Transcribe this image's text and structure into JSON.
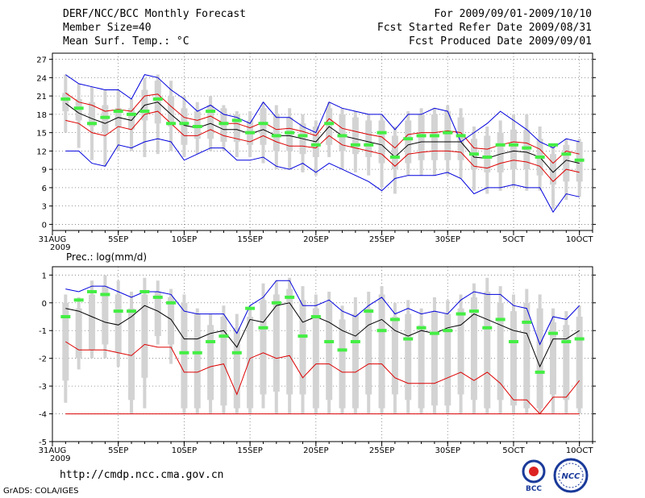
{
  "header": {
    "title": "DERF/NCC/BCC Monthly Forecast",
    "member_size": "Member Size=40",
    "variable": "Mean Surf. Temp.: °C",
    "period": "For 2009/09/01-2009/10/10",
    "started": "Fcst Started Refer Date 2009/08/31",
    "produced": "Fcst Produced Date 2009/09/01"
  },
  "footer": {
    "url": "http://cmdp.ncc.cma.gov.cn",
    "grads": "GrADS: COLA/IGES",
    "logo_left_text": "BCC",
    "logo_right_text": "NCC"
  },
  "colors": {
    "mean": "#000000",
    "spread": "#dd0000",
    "extreme": "#0000dd",
    "box": "#d3d3d3",
    "observed": "#44ee44"
  },
  "chart_data": [
    {
      "type": "box-ensemble",
      "title": "Mean Surf. Temp.: °C",
      "ylim": [
        -1,
        28
      ],
      "yticks": [
        0,
        3,
        6,
        9,
        12,
        15,
        18,
        21,
        24,
        27
      ],
      "xtick_days": [
        0,
        5,
        10,
        15,
        20,
        25,
        30,
        35,
        40
      ],
      "xtick_labels": [
        "31AUG",
        "5SEP",
        "10SEP",
        "15SEP",
        "20SEP",
        "25SEP",
        "30SEP",
        "5OCT",
        "10OCT"
      ],
      "xtick_sublabel": "2009",
      "days": [
        1,
        2,
        3,
        4,
        5,
        6,
        7,
        8,
        9,
        10,
        11,
        12,
        13,
        14,
        15,
        16,
        17,
        18,
        19,
        20,
        21,
        22,
        23,
        24,
        25,
        26,
        27,
        28,
        29,
        30,
        31,
        32,
        33,
        34,
        35,
        36,
        37,
        38,
        39,
        40
      ],
      "box_low": [
        18.5,
        17.0,
        16.0,
        15.0,
        16.0,
        15.5,
        17.0,
        16.5,
        16.0,
        13.0,
        14.0,
        14.0,
        13.5,
        13.5,
        13.0,
        13.0,
        12.0,
        12.0,
        11.5,
        11.0,
        13.0,
        12.0,
        11.5,
        11.0,
        10.0,
        9.0,
        10.0,
        10.5,
        10.5,
        10.5,
        10.5,
        9.0,
        8.5,
        8.5,
        9.0,
        9.0,
        8.0,
        6.5,
        7.0,
        7.0
      ],
      "box_high": [
        21.5,
        20.5,
        20.0,
        19.5,
        19.0,
        19.0,
        22.0,
        23.5,
        21.0,
        19.0,
        18.5,
        19.5,
        19.0,
        18.0,
        17.0,
        19.0,
        18.0,
        17.5,
        16.5,
        16.0,
        19.0,
        18.0,
        17.5,
        17.0,
        17.0,
        14.5,
        17.0,
        18.0,
        18.0,
        18.5,
        17.5,
        14.0,
        14.5,
        15.0,
        15.5,
        15.5,
        14.0,
        11.5,
        13.0,
        13.5
      ],
      "box_min": [
        15.0,
        12.5,
        10.5,
        9.5,
        12.0,
        12.0,
        11.0,
        11.5,
        12.0,
        11.0,
        11.5,
        12.0,
        12.0,
        11.0,
        11.0,
        10.0,
        9.0,
        9.0,
        8.5,
        8.0,
        11.0,
        9.0,
        8.5,
        8.0,
        6.0,
        5.0,
        8.0,
        8.0,
        8.0,
        8.0,
        7.5,
        5.5,
        5.0,
        5.5,
        6.0,
        5.5,
        5.5,
        2.5,
        4.0,
        4.5
      ],
      "box_max": [
        24.5,
        23.0,
        22.5,
        22.0,
        22.0,
        20.5,
        24.0,
        24.5,
        23.5,
        21.0,
        20.0,
        21.0,
        19.5,
        18.5,
        18.5,
        20.0,
        19.5,
        19.0,
        18.0,
        17.0,
        20.0,
        19.0,
        18.5,
        18.0,
        18.0,
        16.0,
        18.5,
        19.0,
        19.0,
        19.5,
        19.0,
        16.0,
        16.0,
        17.0,
        18.0,
        18.0,
        16.0,
        13.0,
        14.0,
        14.0
      ],
      "series": [
        {
          "name": "Mean",
          "color": "#000000",
          "values": [
            19.8,
            18.2,
            17.3,
            16.5,
            17.5,
            17.0,
            19.5,
            20.0,
            18.0,
            16.2,
            15.8,
            16.5,
            15.5,
            15.5,
            14.8,
            15.5,
            14.5,
            14.5,
            14.0,
            13.5,
            16.0,
            14.5,
            14.0,
            13.5,
            13.0,
            11.0,
            13.0,
            13.5,
            13.5,
            13.5,
            13.5,
            11.0,
            10.8,
            11.5,
            12.0,
            11.8,
            11.0,
            8.5,
            10.5,
            10.0
          ]
        },
        {
          "name": "Spread upper",
          "color": "#dd0000",
          "values": [
            21.5,
            20.0,
            19.5,
            18.5,
            18.8,
            18.5,
            21.0,
            21.3,
            19.3,
            17.5,
            17.0,
            17.7,
            16.5,
            16.5,
            15.8,
            16.7,
            15.5,
            15.7,
            15.2,
            14.5,
            17.3,
            15.7,
            15.2,
            14.7,
            14.3,
            12.5,
            14.7,
            15.0,
            15.0,
            15.3,
            15.0,
            12.5,
            12.3,
            13.0,
            13.5,
            13.3,
            12.3,
            10.0,
            12.0,
            11.5
          ]
        },
        {
          "name": "Spread lower",
          "color": "#dd0000",
          "values": [
            17.0,
            16.5,
            15.0,
            14.5,
            16.0,
            15.5,
            18.0,
            18.5,
            16.5,
            14.5,
            14.5,
            15.5,
            14.5,
            14.0,
            13.5,
            14.5,
            13.5,
            12.8,
            12.8,
            12.5,
            14.5,
            13.0,
            12.5,
            12.0,
            11.5,
            9.5,
            11.5,
            11.8,
            12.0,
            12.0,
            11.8,
            9.5,
            9.2,
            10.0,
            10.5,
            10.2,
            9.5,
            7.0,
            9.0,
            8.5
          ]
        },
        {
          "name": "Upper extreme",
          "color": "#0000dd",
          "values": [
            24.5,
            23.0,
            22.5,
            22.0,
            22.0,
            20.5,
            24.5,
            24.0,
            22.0,
            20.5,
            18.5,
            19.5,
            18.0,
            17.5,
            16.5,
            20.0,
            17.5,
            17.5,
            16.0,
            15.0,
            20.0,
            19.0,
            18.5,
            18.0,
            18.0,
            15.5,
            18.0,
            18.0,
            19.0,
            18.5,
            13.5,
            15.0,
            16.5,
            18.5,
            17.0,
            15.5,
            13.5,
            12.5,
            14.0,
            13.5
          ]
        },
        {
          "name": "Lower extreme",
          "color": "#0000dd",
          "values": [
            12.0,
            12.0,
            10.0,
            9.5,
            13.0,
            12.5,
            13.5,
            14.0,
            13.5,
            10.5,
            11.5,
            12.5,
            12.5,
            10.5,
            10.5,
            11.0,
            9.5,
            9.0,
            10.0,
            8.5,
            10.0,
            9.0,
            8.0,
            7.0,
            5.5,
            7.5,
            8.0,
            8.0,
            8.0,
            8.5,
            7.5,
            5.0,
            6.0,
            6.0,
            6.5,
            6.0,
            6.0,
            2.0,
            5.0,
            4.5
          ]
        }
      ],
      "observed": [
        20.5,
        19.0,
        16.5,
        17.5,
        18.5,
        18.0,
        18.5,
        20.5,
        16.5,
        16.5,
        16.0,
        18.5,
        16.5,
        17.0,
        15.0,
        16.5,
        14.5,
        15.0,
        14.5,
        13.0,
        16.5,
        14.5,
        13.0,
        13.0,
        15.0,
        11.0,
        14.0,
        14.5,
        14.5,
        15.0,
        14.5,
        11.5,
        11.0,
        13.0,
        13.0,
        12.5,
        11.0,
        13.0,
        11.5,
        10.5
      ]
    },
    {
      "type": "box-ensemble",
      "title": "Prec.: log(mm/d)",
      "ylim": [
        -5,
        1.3
      ],
      "yticks": [
        -5,
        -4,
        -3,
        -2,
        -1,
        0,
        1
      ],
      "xtick_days": [
        0,
        5,
        10,
        15,
        20,
        25,
        30,
        35,
        40
      ],
      "xtick_labels": [
        "31AUG",
        "5SEP",
        "10SEP",
        "15SEP",
        "20SEP",
        "25SEP",
        "30SEP",
        "5OCT",
        "10OCT"
      ],
      "xtick_sublabel": "2009",
      "days": [
        1,
        2,
        3,
        4,
        5,
        6,
        7,
        8,
        9,
        10,
        11,
        12,
        13,
        14,
        15,
        16,
        17,
        18,
        19,
        20,
        21,
        22,
        23,
        24,
        25,
        26,
        27,
        28,
        29,
        30,
        31,
        32,
        33,
        34,
        35,
        36,
        37,
        38,
        39,
        40
      ],
      "box_low": [
        -2.8,
        -2.0,
        -1.7,
        -1.5,
        -1.8,
        -3.5,
        -2.7,
        -1.2,
        -1.5,
        -3.8,
        -3.8,
        -3.5,
        -3.7,
        -3.8,
        -3.8,
        -3.3,
        -3.2,
        -3.3,
        -3.3,
        -3.8,
        -3.5,
        -3.8,
        -3.8,
        -3.3,
        -3.8,
        -3.3,
        -3.5,
        -3.8,
        -3.7,
        -3.7,
        -3.3,
        -3.5,
        -3.8,
        -3.5,
        -3.7,
        -3.8,
        -3.8,
        -3.3,
        -3.5,
        -3.8
      ],
      "box_high": [
        0.0,
        -0.2,
        0.3,
        0.6,
        0.3,
        -0.2,
        0.3,
        0.4,
        0.2,
        0.0,
        -0.4,
        -0.8,
        -0.5,
        -0.9,
        -0.5,
        0.1,
        0.3,
        0.5,
        0.1,
        -0.2,
        0.0,
        -0.6,
        -0.4,
        -0.2,
        0.3,
        -0.5,
        -0.4,
        -0.8,
        -0.3,
        -0.4,
        -0.2,
        0.2,
        0.4,
        0.0,
        -0.3,
        0.0,
        -0.2,
        -0.7,
        -0.8,
        -0.5
      ],
      "box_min": [
        -3.6,
        -2.4,
        -2.0,
        -2.0,
        -2.3,
        -4.0,
        -3.8,
        -1.5,
        -2.2,
        -4.0,
        -4.0,
        -4.0,
        -4.0,
        -4.0,
        -4.0,
        -3.8,
        -4.0,
        -4.0,
        -4.0,
        -4.0,
        -4.0,
        -4.0,
        -4.0,
        -4.0,
        -4.0,
        -4.0,
        -4.0,
        -4.0,
        -4.0,
        -4.0,
        -4.0,
        -4.0,
        -4.0,
        -4.0,
        -4.0,
        -4.0,
        -4.0,
        -4.0,
        -4.0,
        -4.0
      ],
      "box_max": [
        0.3,
        0.2,
        0.8,
        1.0,
        0.8,
        0.4,
        0.9,
        0.8,
        0.5,
        0.3,
        -0.2,
        -0.4,
        -0.1,
        -0.4,
        -0.1,
        0.7,
        0.8,
        0.9,
        0.6,
        0.3,
        0.4,
        -0.1,
        0.2,
        0.4,
        0.6,
        0.0,
        0.1,
        -0.2,
        0.2,
        0.1,
        0.3,
        0.7,
        0.9,
        0.6,
        0.3,
        0.5,
        0.3,
        -0.2,
        -0.3,
        -0.1
      ],
      "series": [
        {
          "name": "Mean",
          "color": "#000000",
          "values": [
            -0.2,
            -0.3,
            -0.5,
            -0.7,
            -0.8,
            -0.5,
            -0.1,
            -0.3,
            -0.6,
            -1.3,
            -1.3,
            -1.1,
            -1.0,
            -1.6,
            -0.6,
            -0.7,
            -0.1,
            0.0,
            -0.7,
            -0.5,
            -0.7,
            -1.0,
            -1.2,
            -0.8,
            -0.6,
            -1.0,
            -1.2,
            -1.0,
            -1.1,
            -0.9,
            -0.8,
            -0.4,
            -0.6,
            -0.8,
            -1.0,
            -1.1,
            -2.3,
            -1.3,
            -1.3,
            -1.0
          ]
        },
        {
          "name": "Spread lower",
          "color": "#dd0000",
          "values": [
            -1.4,
            -1.7,
            -1.7,
            -1.7,
            -1.8,
            -1.9,
            -1.5,
            -1.6,
            -1.6,
            -2.5,
            -2.5,
            -2.3,
            -2.2,
            -3.3,
            -2.0,
            -1.8,
            -2.0,
            -1.9,
            -2.7,
            -2.2,
            -2.2,
            -2.5,
            -2.5,
            -2.2,
            -2.2,
            -2.7,
            -2.9,
            -2.9,
            -2.9,
            -2.7,
            -2.5,
            -2.8,
            -2.5,
            -2.9,
            -3.5,
            -3.5,
            -4.0,
            -3.4,
            -3.4,
            -2.8
          ]
        },
        {
          "name": "Spread floor",
          "color": "#dd0000",
          "values": [
            -4.0,
            -4.0,
            -4.0,
            -4.0,
            -4.0,
            -4.0,
            -4.0,
            -4.0,
            -4.0,
            -4.0,
            -4.0,
            -4.0,
            -4.0,
            -4.0,
            -4.0,
            -4.0,
            -4.0,
            -4.0,
            -4.0,
            -4.0,
            -4.0,
            -4.0,
            -4.0,
            -4.0,
            -4.0,
            -4.0,
            -4.0,
            -4.0,
            -4.0,
            -4.0,
            -4.0,
            -4.0,
            -4.0,
            -4.0,
            -4.0,
            -4.0,
            -4.0,
            -4.0,
            -4.0,
            -4.0
          ]
        },
        {
          "name": "Upper extreme",
          "color": "#0000dd",
          "values": [
            0.5,
            0.4,
            0.6,
            0.6,
            0.4,
            0.2,
            0.4,
            0.4,
            0.3,
            -0.3,
            -0.4,
            -0.4,
            -0.4,
            -1.1,
            -0.1,
            0.2,
            0.8,
            0.8,
            -0.1,
            -0.1,
            0.1,
            -0.3,
            -0.5,
            -0.1,
            0.2,
            -0.4,
            -0.2,
            -0.4,
            -0.3,
            -0.4,
            0.1,
            0.4,
            0.3,
            0.3,
            -0.1,
            -0.2,
            -1.5,
            -0.5,
            -0.6,
            -0.1
          ]
        }
      ],
      "observed": [
        -0.5,
        0.1,
        0.4,
        0.3,
        -0.3,
        -0.3,
        0.4,
        0.2,
        0.0,
        -1.8,
        -1.8,
        -1.4,
        -1.2,
        -1.8,
        -0.2,
        -0.9,
        0.0,
        0.2,
        -1.2,
        -0.5,
        -1.4,
        -1.7,
        -1.4,
        -0.3,
        -1.0,
        -0.6,
        -1.3,
        -0.9,
        -1.1,
        -1.0,
        -0.4,
        -0.3,
        -0.9,
        -0.6,
        -1.4,
        -0.7,
        -2.5,
        -1.1,
        -1.4,
        -1.3
      ]
    }
  ]
}
